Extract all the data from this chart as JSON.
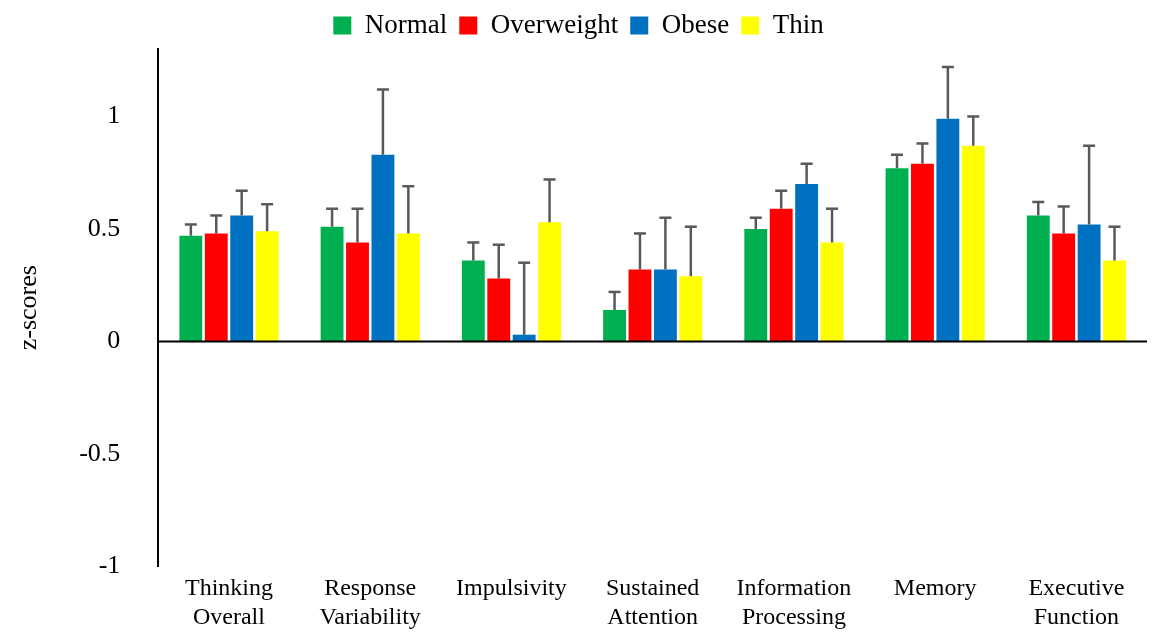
{
  "chart_data": {
    "type": "bar",
    "ylabel": "z-scores",
    "categories": [
      "Thinking Overall",
      "Response Variability",
      "Impulsivity",
      "Sustained Attention",
      "Information Processing",
      "Memory",
      "Executive Function"
    ],
    "series": [
      {
        "name": "Normal",
        "color": "#00b050",
        "values": [
          0.47,
          0.51,
          0.36,
          0.14,
          0.5,
          0.77,
          0.56
        ],
        "errors": [
          [
            0.47,
            0.52
          ],
          [
            0.51,
            0.59
          ],
          [
            0.36,
            0.44
          ],
          [
            0.14,
            0.22
          ],
          [
            0.5,
            0.55
          ],
          [
            0.77,
            0.83
          ],
          [
            0.56,
            0.62
          ]
        ]
      },
      {
        "name": "Overweight",
        "color": "#ff0000",
        "values": [
          0.48,
          0.44,
          0.28,
          0.32,
          0.59,
          0.79,
          0.48
        ],
        "errors": [
          [
            0.48,
            0.56
          ],
          [
            0.44,
            0.59
          ],
          [
            0.28,
            0.43
          ],
          [
            0.32,
            0.48
          ],
          [
            0.59,
            0.67
          ],
          [
            0.79,
            0.88
          ],
          [
            0.48,
            0.6
          ]
        ]
      },
      {
        "name": "Obese",
        "color": "#0070c0",
        "values": [
          0.56,
          0.83,
          0.03,
          0.32,
          0.7,
          0.99,
          0.52
        ],
        "errors": [
          [
            0.56,
            0.67
          ],
          [
            0.83,
            1.12
          ],
          [
            0.03,
            0.35
          ],
          [
            0.32,
            0.55
          ],
          [
            0.7,
            0.79
          ],
          [
            0.99,
            1.22
          ],
          [
            0.52,
            0.87
          ]
        ]
      },
      {
        "name": "Thin",
        "color": "#ffff00",
        "values": [
          0.49,
          0.48,
          0.53,
          0.29,
          0.44,
          0.87,
          0.36
        ],
        "errors": [
          [
            0.49,
            0.61
          ],
          [
            0.48,
            0.69
          ],
          [
            0.53,
            0.72
          ],
          [
            0.29,
            0.51
          ],
          [
            0.44,
            0.59
          ],
          [
            0.87,
            1.0
          ],
          [
            0.36,
            0.51
          ]
        ]
      }
    ],
    "ylim": [
      -1,
      1.3
    ],
    "yticks": [
      -1,
      -0.5,
      0,
      0.5,
      1
    ],
    "grid": false,
    "legend": "top",
    "ref_lines": [
      {
        "axis": "y",
        "value": 0,
        "color": "#000000"
      }
    ]
  }
}
